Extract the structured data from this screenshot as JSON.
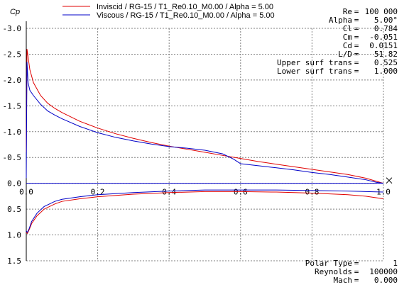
{
  "chart_data": {
    "type": "line",
    "ylabel": "Cp",
    "xlim": [
      0.0,
      1.0
    ],
    "ylim": [
      -3.0,
      1.5
    ],
    "y_inverted": true,
    "grid": true,
    "x_ticks": [
      "0.0",
      "0.2",
      "0.4",
      "0.6",
      "0.8",
      "1.0"
    ],
    "y_ticks": [
      "-3.0",
      "-2.5",
      "-2.0",
      "-1.5",
      "-1.0",
      "-0.5",
      "0.0",
      "0.5",
      "1.0",
      "1.5"
    ],
    "legend_position": "top-left",
    "axis_end_marker": "X",
    "series": [
      {
        "name": "Inviscid / RG-15 / T1_Re0.10_M0.00 / Alpha =  5.00",
        "color": "#e00000",
        "upper": {
          "x": [
            0.0,
            0.002,
            0.005,
            0.01,
            0.02,
            0.04,
            0.06,
            0.08,
            0.1,
            0.15,
            0.2,
            0.25,
            0.3,
            0.35,
            0.4,
            0.45,
            0.5,
            0.55,
            0.6,
            0.65,
            0.7,
            0.75,
            0.8,
            0.85,
            0.9,
            0.95,
            0.98,
            1.0
          ],
          "y": [
            -0.6,
            -2.6,
            -2.45,
            -2.2,
            -1.95,
            -1.7,
            -1.55,
            -1.45,
            -1.37,
            -1.2,
            -1.07,
            -0.96,
            -0.87,
            -0.79,
            -0.72,
            -0.66,
            -0.6,
            -0.54,
            -0.48,
            -0.42,
            -0.37,
            -0.32,
            -0.27,
            -0.22,
            -0.17,
            -0.1,
            -0.04,
            0.0
          ]
        },
        "lower": {
          "x": [
            0.0,
            0.003,
            0.008,
            0.015,
            0.03,
            0.05,
            0.08,
            0.1,
            0.15,
            0.2,
            0.3,
            0.4,
            0.5,
            0.6,
            0.7,
            0.8,
            0.9,
            0.95,
            1.0
          ],
          "y": [
            0.95,
            0.97,
            0.9,
            0.78,
            0.63,
            0.5,
            0.4,
            0.35,
            0.3,
            0.26,
            0.21,
            0.18,
            0.16,
            0.16,
            0.17,
            0.19,
            0.22,
            0.25,
            0.3
          ]
        }
      },
      {
        "name": "Viscous / RG-15 / T1_Re0.10_M0.00 / Alpha =  5.00",
        "color": "#0000c8",
        "upper": {
          "x": [
            0.0,
            0.002,
            0.005,
            0.01,
            0.02,
            0.04,
            0.06,
            0.08,
            0.1,
            0.15,
            0.2,
            0.25,
            0.3,
            0.35,
            0.4,
            0.45,
            0.5,
            0.55,
            0.58,
            0.6,
            0.65,
            0.7,
            0.75,
            0.8,
            0.85,
            0.9,
            0.95,
            0.98,
            1.0
          ],
          "y": [
            -0.1,
            -2.35,
            -1.95,
            -1.8,
            -1.7,
            -1.53,
            -1.4,
            -1.32,
            -1.25,
            -1.1,
            -0.98,
            -0.89,
            -0.82,
            -0.76,
            -0.71,
            -0.68,
            -0.64,
            -0.57,
            -0.47,
            -0.38,
            -0.34,
            -0.3,
            -0.26,
            -0.21,
            -0.17,
            -0.12,
            -0.07,
            -0.02,
            0.0
          ]
        },
        "lower": {
          "x": [
            0.0,
            0.003,
            0.008,
            0.015,
            0.03,
            0.05,
            0.08,
            0.1,
            0.15,
            0.2,
            0.3,
            0.4,
            0.5,
            0.6,
            0.7,
            0.8,
            0.9,
            0.95,
            1.0
          ],
          "y": [
            0.92,
            0.95,
            0.88,
            0.74,
            0.58,
            0.45,
            0.35,
            0.31,
            0.26,
            0.22,
            0.18,
            0.15,
            0.13,
            0.13,
            0.13,
            0.14,
            0.15,
            0.16,
            0.17
          ]
        }
      }
    ]
  },
  "stats_top": [
    {
      "label": "Re",
      "value": "100 000"
    },
    {
      "label": "Alpha",
      "value": "5.00°"
    },
    {
      "label": "Cl",
      "value": "0.784"
    },
    {
      "label": "Cm",
      "value": "-0.051"
    },
    {
      "label": "Cd",
      "value": "0.0151"
    },
    {
      "label": "L/D",
      "value": "51.82"
    },
    {
      "label": "Upper surf trans",
      "value": "0.525"
    },
    {
      "label": "Lower surf trans",
      "value": "1.000"
    }
  ],
  "stats_bottom": [
    {
      "label": "Polar Type",
      "value": "1"
    },
    {
      "label": "Reynolds",
      "value": "100000"
    },
    {
      "label": "Mach",
      "value": "0.000"
    }
  ]
}
